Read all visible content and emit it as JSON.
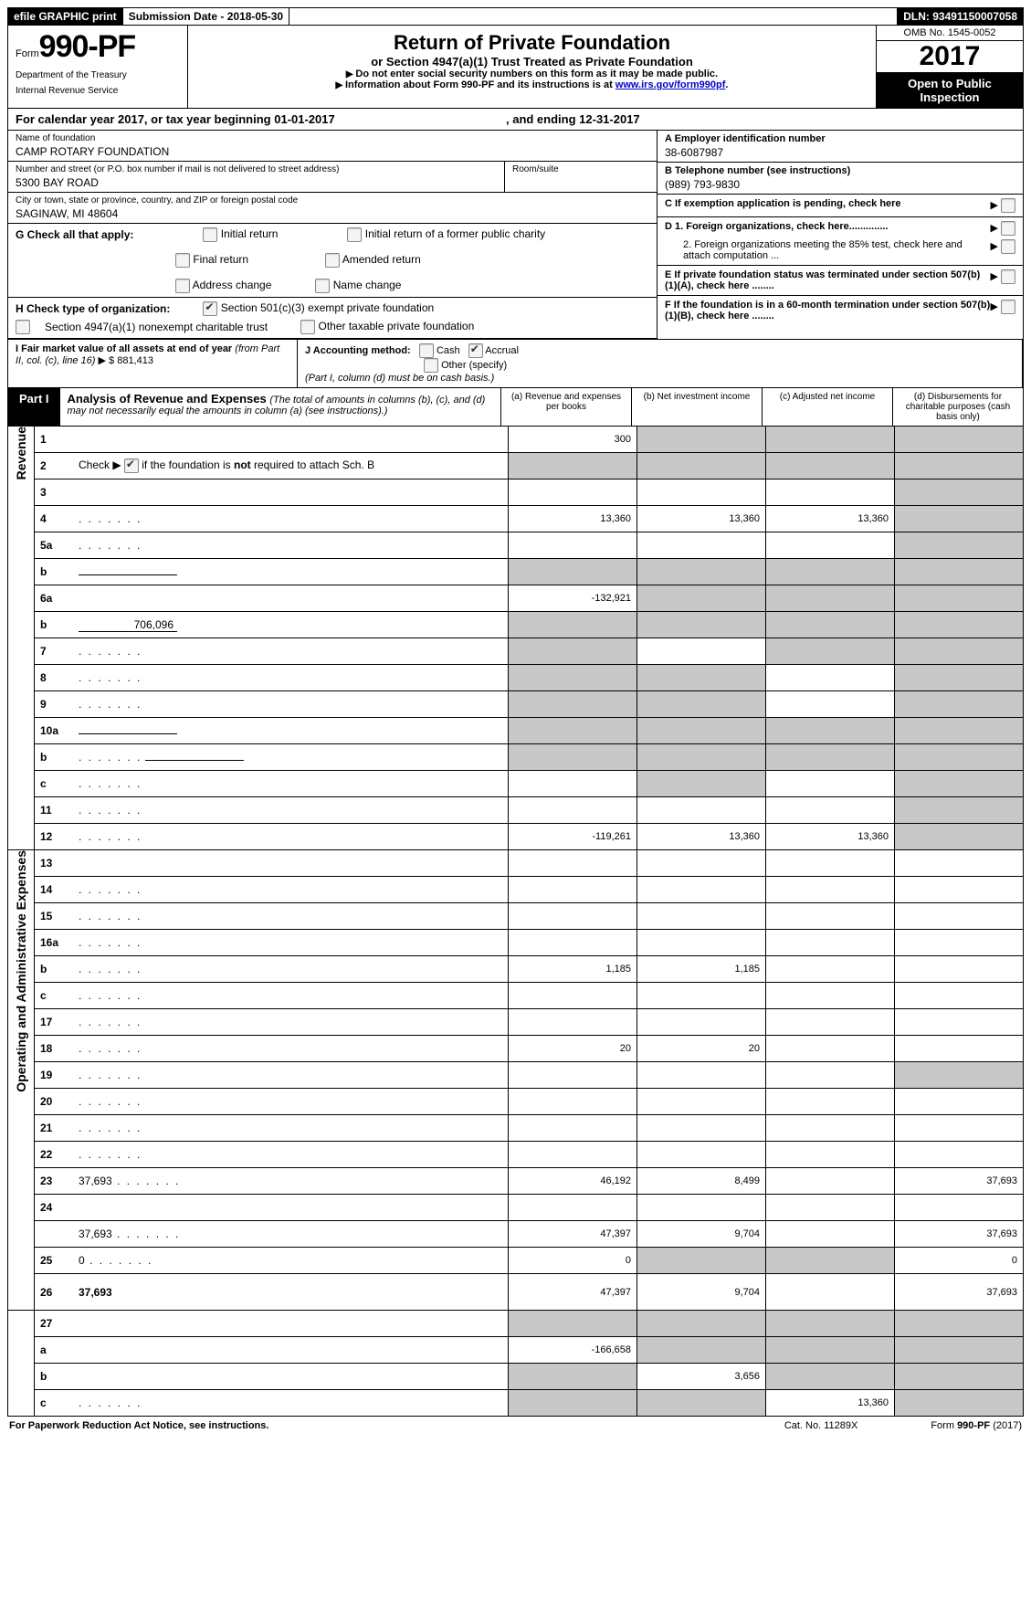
{
  "topbar": {
    "efile": "efile GRAPHIC print",
    "sub_label": "Submission Date - ",
    "sub_date": "2018-05-30",
    "dln_label": "DLN: ",
    "dln": "93491150007058"
  },
  "header": {
    "form_word": "Form",
    "form_no": "990-PF",
    "dept1": "Department of the Treasury",
    "dept2": "Internal Revenue Service",
    "title": "Return of Private Foundation",
    "subtitle": "or Section 4947(a)(1) Trust Treated as Private Foundation",
    "warn1": "Do not enter social security numbers on this form as it may be made public.",
    "warn2_pre": "Information about Form 990-PF and its instructions is at ",
    "warn2_link": "www.irs.gov/form990pf",
    "omb": "OMB No. 1545-0052",
    "year": "2017",
    "open": "Open to Public Inspection"
  },
  "cal": {
    "pre": "For calendar year 2017, or tax year beginning ",
    "begin": "01-01-2017",
    "mid": ", and ending ",
    "end": "12-31-2017"
  },
  "name_block": {
    "label": "Name of foundation",
    "value": "CAMP ROTARY FOUNDATION"
  },
  "addr": {
    "label": "Number and street (or P.O. box number if mail is not delivered to street address)",
    "value": "5300 BAY ROAD",
    "room_label": "Room/suite"
  },
  "city": {
    "label": "City or town, state or province, country, and ZIP or foreign postal code",
    "value": "SAGINAW, MI  48604"
  },
  "rightA": {
    "label": "A Employer identification number",
    "value": "38-6087987"
  },
  "rightB": {
    "label": "B Telephone number (see instructions)",
    "value": "(989) 793-9830"
  },
  "rightC": {
    "label": "C  If exemption application is pending, check here"
  },
  "rightD1": {
    "label": "D 1. Foreign organizations, check here.............."
  },
  "rightD2": {
    "label": "2. Foreign organizations meeting the 85% test, check here and attach computation ..."
  },
  "rightE": {
    "label": "E  If private foundation status was terminated under section 507(b)(1)(A), check here ........"
  },
  "rightF": {
    "label": "F  If the foundation is in a 60-month termination under section 507(b)(1)(B), check here ........"
  },
  "G": {
    "label": "G Check all that apply:",
    "o1": "Initial return",
    "o2": "Initial return of a former public charity",
    "o3": "Final return",
    "o4": "Amended return",
    "o5": "Address change",
    "o6": "Name change"
  },
  "H": {
    "label": "H Check type of organization:",
    "o1": "Section 501(c)(3) exempt private foundation",
    "o2": "Section 4947(a)(1) nonexempt charitable trust",
    "o3": "Other taxable private foundation"
  },
  "I": {
    "label": "I Fair market value of all assets at end of year ",
    "sub": "(from Part II, col. (c), line 16)",
    "arrow": "▶",
    "dollar": "$",
    "value": "881,413"
  },
  "J": {
    "label": "J Accounting method:",
    "o1": "Cash",
    "o2": "Accrual",
    "o3": "Other (specify)",
    "note": "(Part I, column (d) must be on cash basis.)"
  },
  "part1": {
    "label": "Part I",
    "title": "Analysis of Revenue and Expenses ",
    "note": "(The total of amounts in columns (b), (c), and (d) may not necessarily equal the amounts in column (a) (see instructions).)",
    "colA": "(a)    Revenue and expenses per books",
    "colB": "(b)    Net investment income",
    "colC": "(c)    Adjusted net income",
    "colD": "(d)    Disbursements for charitable purposes (cash basis only)"
  },
  "sectionRevenue": "Revenue",
  "sectionExpenses": "Operating and Administrative Expenses",
  "rows": {
    "r1": {
      "n": "1",
      "d": "",
      "a": "300",
      "b": "",
      "c": "",
      "grey": [
        "b",
        "c",
        "d"
      ]
    },
    "r2": {
      "n": "2",
      "d": "",
      "checkbox": true,
      "a": "",
      "b": "",
      "c": "",
      "grey": [
        "a",
        "b",
        "c",
        "d"
      ]
    },
    "r3": {
      "n": "3",
      "d": "",
      "a": "",
      "b": "",
      "c": "",
      "grey": [
        "d"
      ]
    },
    "r4": {
      "n": "4",
      "d": "",
      "dots": true,
      "a": "13,360",
      "b": "13,360",
      "c": "13,360",
      "grey": [
        "d"
      ]
    },
    "r5a": {
      "n": "5a",
      "d": "",
      "dots": true,
      "a": "",
      "b": "",
      "c": "",
      "grey": [
        "d"
      ]
    },
    "r5b": {
      "n": "b",
      "d": "",
      "inner": "",
      "a": "",
      "b": "",
      "c": "",
      "grey": [
        "a",
        "b",
        "c",
        "d"
      ]
    },
    "r6a": {
      "n": "6a",
      "d": "",
      "a": "-132,921",
      "b": "",
      "c": "",
      "grey": [
        "b",
        "c",
        "d"
      ]
    },
    "r6b": {
      "n": "b",
      "d": "",
      "inner": "706,096",
      "a": "",
      "b": "",
      "c": "",
      "grey": [
        "a",
        "b",
        "c",
        "d"
      ]
    },
    "r7": {
      "n": "7",
      "d": "",
      "dots": true,
      "a": "",
      "b": "",
      "c": "",
      "grey": [
        "a",
        "c",
        "d"
      ]
    },
    "r8": {
      "n": "8",
      "d": "",
      "dots": true,
      "a": "",
      "b": "",
      "c": "",
      "grey": [
        "a",
        "b",
        "d"
      ]
    },
    "r9": {
      "n": "9",
      "d": "",
      "dots": true,
      "a": "",
      "b": "",
      "c": "",
      "grey": [
        "a",
        "b",
        "d"
      ]
    },
    "r10a": {
      "n": "10a",
      "d": "",
      "inner": "",
      "a": "",
      "b": "",
      "c": "",
      "grey": [
        "a",
        "b",
        "c",
        "d"
      ]
    },
    "r10b": {
      "n": "b",
      "d": "",
      "dots": true,
      "inner": "",
      "a": "",
      "b": "",
      "c": "",
      "grey": [
        "a",
        "b",
        "c",
        "d"
      ]
    },
    "r10c": {
      "n": "c",
      "d": "",
      "dots": true,
      "a": "",
      "b": "",
      "c": "",
      "grey": [
        "b",
        "d"
      ]
    },
    "r11": {
      "n": "11",
      "d": "",
      "dots": true,
      "a": "",
      "b": "",
      "c": "",
      "grey": [
        "d"
      ]
    },
    "r12": {
      "n": "12",
      "d": "",
      "dots": true,
      "bold": true,
      "a": "-119,261",
      "b": "13,360",
      "c": "13,360",
      "grey": [
        "d"
      ]
    },
    "r13": {
      "n": "13",
      "d": "",
      "a": "",
      "b": "",
      "c": ""
    },
    "r14": {
      "n": "14",
      "d": "",
      "dots": true,
      "a": "",
      "b": "",
      "c": ""
    },
    "r15": {
      "n": "15",
      "d": "",
      "dots": true,
      "a": "",
      "b": "",
      "c": ""
    },
    "r16a": {
      "n": "16a",
      "d": "",
      "dots": true,
      "a": "",
      "b": "",
      "c": ""
    },
    "r16b": {
      "n": "b",
      "d": "",
      "dots": true,
      "a": "1,185",
      "b": "1,185",
      "c": ""
    },
    "r16c": {
      "n": "c",
      "d": "",
      "dots": true,
      "a": "",
      "b": "",
      "c": ""
    },
    "r17": {
      "n": "17",
      "d": "",
      "dots": true,
      "a": "",
      "b": "",
      "c": ""
    },
    "r18": {
      "n": "18",
      "d": "",
      "dots": true,
      "a": "20",
      "b": "20",
      "c": ""
    },
    "r19": {
      "n": "19",
      "d": "",
      "dots": true,
      "a": "",
      "b": "",
      "c": "",
      "grey": [
        "d"
      ]
    },
    "r20": {
      "n": "20",
      "d": "",
      "dots": true,
      "a": "",
      "b": "",
      "c": ""
    },
    "r21": {
      "n": "21",
      "d": "",
      "dots": true,
      "a": "",
      "b": "",
      "c": ""
    },
    "r22": {
      "n": "22",
      "d": "",
      "dots": true,
      "a": "",
      "b": "",
      "c": ""
    },
    "r23": {
      "n": "23",
      "d": "37,693",
      "dots": true,
      "a": "46,192",
      "b": "8,499",
      "c": ""
    },
    "r24": {
      "n": "24",
      "d": "",
      "bold": true,
      "a": "",
      "b": "",
      "c": "",
      "noamt": true
    },
    "r24b": {
      "n": "",
      "d": "37,693",
      "dots": true,
      "a": "47,397",
      "b": "9,704",
      "c": ""
    },
    "r25": {
      "n": "25",
      "d": "0",
      "dots": true,
      "a": "0",
      "b": "",
      "c": "",
      "grey": [
        "b",
        "c"
      ]
    },
    "r26": {
      "n": "26",
      "d": "37,693",
      "bold": true,
      "a": "47,397",
      "b": "9,704",
      "c": "",
      "tall": true
    },
    "r27": {
      "n": "27",
      "d": "",
      "a": "",
      "b": "",
      "c": "",
      "grey": [
        "a",
        "b",
        "c",
        "d"
      ]
    },
    "r27a": {
      "n": "a",
      "d": "",
      "bold": true,
      "a": "-166,658",
      "b": "",
      "c": "",
      "grey": [
        "b",
        "c",
        "d"
      ]
    },
    "r27b": {
      "n": "b",
      "d": "",
      "bold": true,
      "a": "",
      "b": "3,656",
      "c": "",
      "grey": [
        "a",
        "c",
        "d"
      ]
    },
    "r27c": {
      "n": "c",
      "d": "",
      "bold": true,
      "dots": true,
      "a": "",
      "b": "",
      "c": "13,360",
      "grey": [
        "a",
        "b",
        "d"
      ]
    }
  },
  "footer": {
    "left": "For Paperwork Reduction Act Notice, see instructions.",
    "mid": "Cat. No. 11289X",
    "right": "Form 990-PF (2017)"
  }
}
